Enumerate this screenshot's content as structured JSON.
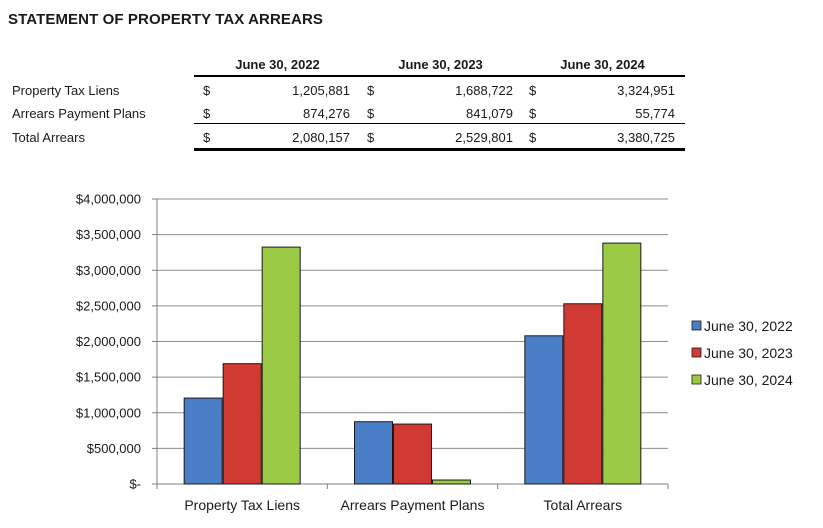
{
  "title": "STATEMENT OF PROPERTY TAX ARREARS",
  "table": {
    "headers": [
      "June 30, 2022",
      "June 30, 2023",
      "June 30, 2024"
    ],
    "currency_symbol": "$",
    "rows": [
      {
        "label": "Property Tax Liens",
        "values": [
          "1,205,881",
          "1,688,722",
          "3,324,951"
        ]
      },
      {
        "label": "Arrears Payment Plans",
        "values": [
          "874,276",
          "841,079",
          "55,774"
        ]
      },
      {
        "label": "Total Arrears",
        "values": [
          "2,080,157",
          "2,529,801",
          "3,380,725"
        ]
      }
    ]
  },
  "chart_data": {
    "type": "bar",
    "title": "",
    "xlabel": "",
    "ylabel": "",
    "categories": [
      "Property Tax Liens",
      "Arrears Payment Plans",
      "Total Arrears"
    ],
    "series": [
      {
        "name": "June 30, 2022",
        "color": "#4a7fc8",
        "values": [
          1205881,
          874276,
          2080157
        ]
      },
      {
        "name": "June 30, 2023",
        "color": "#d13a32",
        "values": [
          1688722,
          841079,
          2529801
        ]
      },
      {
        "name": "June 30, 2024",
        "color": "#9bcb45",
        "values": [
          3324951,
          55774,
          3380725
        ]
      }
    ],
    "ylim": [
      0,
      4000000
    ],
    "y_ticks": [
      "$-",
      "$500,000",
      "$1,000,000",
      "$1,500,000",
      "$2,000,000",
      "$2,500,000",
      "$3,000,000",
      "$3,500,000",
      "$4,000,000"
    ],
    "grid": true,
    "legend": "right"
  }
}
